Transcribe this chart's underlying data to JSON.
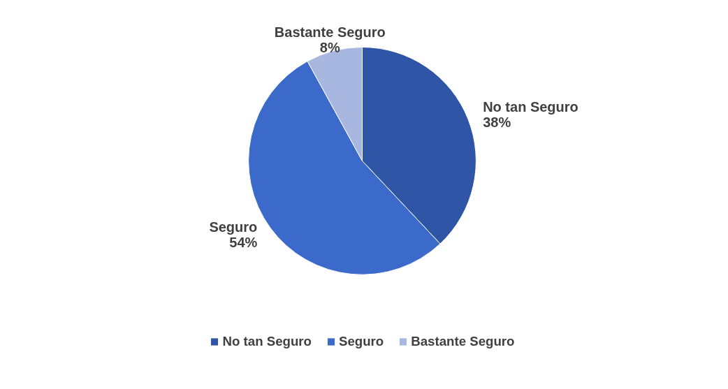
{
  "chart_data": {
    "type": "pie",
    "categories": [
      "No tan Seguro",
      "Seguro",
      "Bastante Seguro"
    ],
    "values": [
      38,
      54,
      8
    ],
    "colors": [
      "#2f56a6",
      "#3b6acb",
      "#a8b7e0"
    ],
    "value_labels": [
      "38%",
      "54%",
      "8%"
    ],
    "legend": "bottom"
  }
}
